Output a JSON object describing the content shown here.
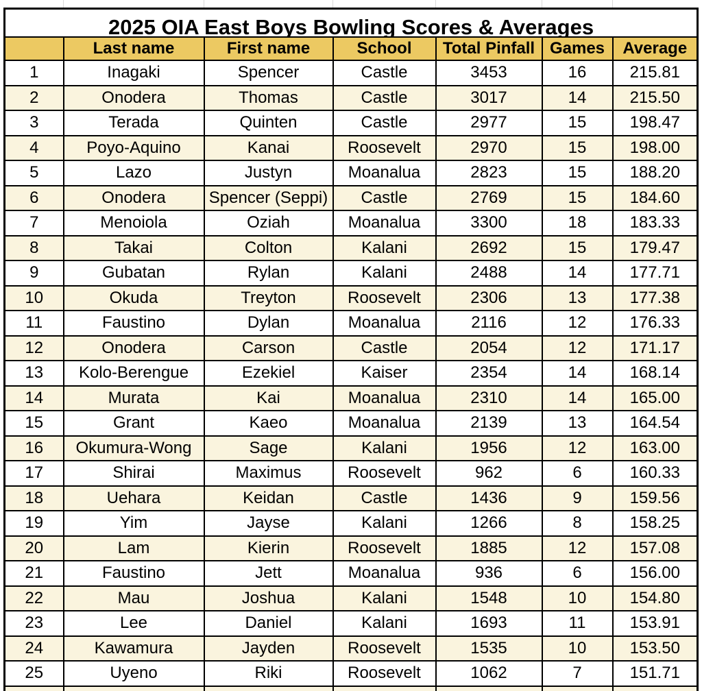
{
  "colors": {
    "header_bg": "#ECC962",
    "stripe_bg": "#FAF4DE",
    "row_bg": "#FFFFFF",
    "border": "#000000",
    "gridline": "#D9D9D9",
    "text": "#000000"
  },
  "table": {
    "title": "2025 OIA East Boys Bowling Scores & Averages",
    "columns": [
      "",
      "Last name",
      "First name",
      "School",
      "Total Pinfall",
      "Games",
      "Average"
    ],
    "rows": [
      [
        "1",
        "Inagaki",
        "Spencer",
        "Castle",
        "3453",
        "16",
        "215.81"
      ],
      [
        "2",
        "Onodera",
        "Thomas",
        "Castle",
        "3017",
        "14",
        "215.50"
      ],
      [
        "3",
        "Terada",
        "Quinten",
        "Castle",
        "2977",
        "15",
        "198.47"
      ],
      [
        "4",
        "Poyo-Aquino",
        "Kanai",
        "Roosevelt",
        "2970",
        "15",
        "198.00"
      ],
      [
        "5",
        "Lazo",
        "Justyn",
        "Moanalua",
        "2823",
        "15",
        "188.20"
      ],
      [
        "6",
        "Onodera",
        "Spencer (Seppi)",
        "Castle",
        "2769",
        "15",
        "184.60"
      ],
      [
        "7",
        "Menoiola",
        "Oziah",
        "Moanalua",
        "3300",
        "18",
        "183.33"
      ],
      [
        "8",
        "Takai",
        "Colton",
        "Kalani",
        "2692",
        "15",
        "179.47"
      ],
      [
        "9",
        "Gubatan",
        "Rylan",
        "Kalani",
        "2488",
        "14",
        "177.71"
      ],
      [
        "10",
        "Okuda",
        "Treyton",
        "Roosevelt",
        "2306",
        "13",
        "177.38"
      ],
      [
        "11",
        "Faustino",
        "Dylan",
        "Moanalua",
        "2116",
        "12",
        "176.33"
      ],
      [
        "12",
        "Onodera",
        "Carson",
        "Castle",
        "2054",
        "12",
        "171.17"
      ],
      [
        "13",
        "Kolo-Berengue",
        "Ezekiel",
        "Kaiser",
        "2354",
        "14",
        "168.14"
      ],
      [
        "14",
        "Murata",
        "Kai",
        "Moanalua",
        "2310",
        "14",
        "165.00"
      ],
      [
        "15",
        "Grant",
        "Kaeo",
        "Moanalua",
        "2139",
        "13",
        "164.54"
      ],
      [
        "16",
        "Okumura-Wong",
        "Sage",
        "Kalani",
        "1956",
        "12",
        "163.00"
      ],
      [
        "17",
        "Shirai",
        "Maximus",
        "Roosevelt",
        "962",
        "6",
        "160.33"
      ],
      [
        "18",
        "Uehara",
        "Keidan",
        "Castle",
        "1436",
        "9",
        "159.56"
      ],
      [
        "19",
        "Yim",
        "Jayse",
        "Kalani",
        "1266",
        "8",
        "158.25"
      ],
      [
        "20",
        "Lam",
        "Kierin",
        "Roosevelt",
        "1885",
        "12",
        "157.08"
      ],
      [
        "21",
        "Faustino",
        "Jett",
        "Moanalua",
        "936",
        "6",
        "156.00"
      ],
      [
        "22",
        "Mau",
        "Joshua",
        "Kalani",
        "1548",
        "10",
        "154.80"
      ],
      [
        "23",
        "Lee",
        "Daniel",
        "Kalani",
        "1693",
        "11",
        "153.91"
      ],
      [
        "24",
        "Kawamura",
        "Jayden",
        "Roosevelt",
        "1535",
        "10",
        "153.50"
      ],
      [
        "25",
        "Uyeno",
        "Riki",
        "Roosevelt",
        "1062",
        "7",
        "151.71"
      ]
    ]
  }
}
